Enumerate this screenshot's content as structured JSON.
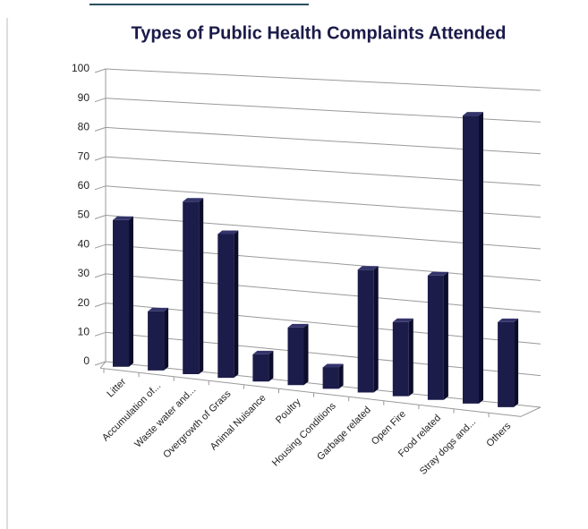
{
  "chart_data": {
    "type": "bar3d",
    "title": "Types of Public Health Complaints Attended",
    "categories": [
      "Litter",
      "Accumulation of...",
      "Waste water and...",
      "Overgrowth of Grass",
      "Animal Nuisance",
      "Poultry",
      "Housing Conditions",
      "Garbage related",
      "Open Fire",
      "Food related",
      "Stray dogs and...",
      "Others"
    ],
    "values": [
      50,
      20,
      58,
      48,
      9,
      19,
      7,
      40,
      24,
      40,
      92,
      27
    ],
    "color": "#1c1c4a",
    "ylim": [
      0,
      100
    ],
    "yticks": [
      0,
      10,
      20,
      30,
      40,
      50,
      60,
      70,
      80,
      90,
      100
    ],
    "grid": true
  }
}
